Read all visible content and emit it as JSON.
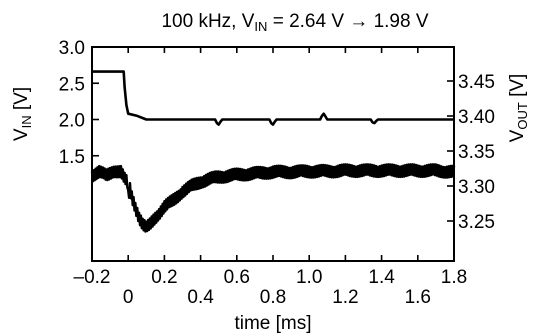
{
  "chart_data": {
    "type": "line",
    "title": {
      "main": "100 kHz, V",
      "sub": "IN",
      "rest": " = 2.64 V → 1.98 V"
    },
    "xlabel": "time [ms]",
    "ylabel_left": {
      "main": "V",
      "sub": "IN",
      "rest": " [V]"
    },
    "ylabel_right": {
      "main": "V",
      "sub": "OUT",
      "rest": " [V]"
    },
    "xlim": [
      -0.2,
      1.8
    ],
    "ylim_left": [
      0.0,
      3.0
    ],
    "ylim_right": [
      3.2,
      3.5
    ],
    "grid": false,
    "x_ticks_upper": [
      "–0.2",
      "0.2",
      "0.6",
      "1.0",
      "1.4",
      "1.8"
    ],
    "x_ticks_upper_values": [
      -0.2,
      0.2,
      0.6,
      1.0,
      1.4,
      1.8
    ],
    "x_ticks_lower": [
      "0",
      "0.4",
      "0.8",
      "1.2",
      "1.6"
    ],
    "x_ticks_lower_values": [
      0.0,
      0.4,
      0.8,
      1.2,
      1.6
    ],
    "y_ticks_left": [
      "1.5",
      "2.0",
      "2.5",
      "3.0"
    ],
    "y_ticks_left_values": [
      1.5,
      2.0,
      2.5,
      3.0
    ],
    "y_ticks_right": [
      "3.25",
      "3.30",
      "3.35",
      "3.40",
      "3.45"
    ],
    "y_ticks_right_values": [
      3.25,
      3.3,
      3.35,
      3.4,
      3.45
    ],
    "series": [
      {
        "axis": "left",
        "x": [
          -0.2,
          -0.025,
          -0.02,
          -0.01,
          0.0,
          0.05,
          0.1,
          0.2,
          0.48,
          0.49,
          0.5,
          0.51,
          0.52,
          0.78,
          0.79,
          0.8,
          0.81,
          0.82,
          1.06,
          1.07,
          1.08,
          1.09,
          1.1,
          1.34,
          1.35,
          1.36,
          1.37,
          1.38,
          1.8
        ],
        "y": [
          2.66,
          2.66,
          2.45,
          2.2,
          2.08,
          2.05,
          2.0,
          2.0,
          2.0,
          1.95,
          1.93,
          1.97,
          2.0,
          2.0,
          1.95,
          1.93,
          1.97,
          2.0,
          2.0,
          2.05,
          2.08,
          2.04,
          2.0,
          2.0,
          1.96,
          1.95,
          1.98,
          2.0,
          2.0
        ]
      },
      {
        "axis": "right",
        "x": [
          -0.2,
          -0.16,
          -0.12,
          -0.08,
          -0.04,
          -0.02,
          -0.005,
          0.0,
          0.01,
          0.02,
          0.04,
          0.06,
          0.08,
          0.1,
          0.12,
          0.15,
          0.2,
          0.25,
          0.3,
          0.35,
          0.4,
          0.45,
          0.5,
          0.6,
          0.7,
          0.8,
          0.9,
          1.0,
          1.1,
          1.2,
          1.3,
          1.4,
          1.5,
          1.6,
          1.7,
          1.8
        ],
        "y": [
          3.315,
          3.32,
          3.315,
          3.322,
          3.32,
          3.31,
          3.305,
          3.285,
          3.296,
          3.285,
          3.27,
          3.255,
          3.245,
          3.24,
          3.245,
          3.255,
          3.27,
          3.28,
          3.292,
          3.3,
          3.306,
          3.31,
          3.313,
          3.316,
          3.318,
          3.32,
          3.32,
          3.321,
          3.321,
          3.322,
          3.322,
          3.322,
          3.322,
          3.322,
          3.322,
          3.32
        ],
        "ripple_amplitude": 0.009
      }
    ]
  }
}
